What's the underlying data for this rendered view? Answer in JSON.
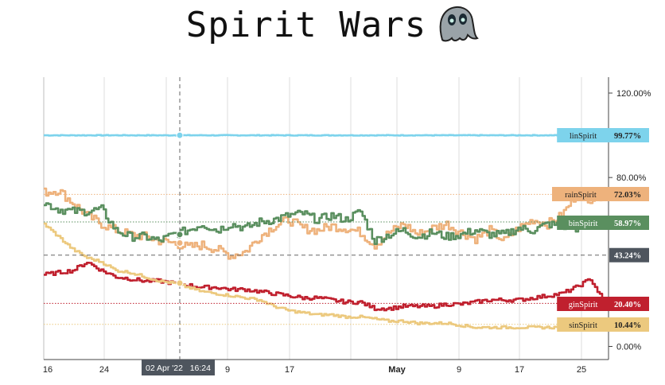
{
  "page": {
    "title": "Spirit Wars",
    "title_icon": "ghost-icon"
  },
  "chart_data": {
    "type": "line",
    "title": "Spirit Wars",
    "y_unit": "%",
    "ylim": [
      -4,
      125
    ],
    "x_ticks": [
      "16",
      "24",
      "9",
      "17",
      "May",
      "9",
      "17",
      "25"
    ],
    "y_ticks": [
      "0.00%",
      "80.00%",
      "120.00%"
    ],
    "grid": true,
    "crosshair": {
      "label": "02 Apr '22   16:24",
      "value_label": "43.24%",
      "value": 43.24
    },
    "series": [
      {
        "name": "linSpirit",
        "color": "#7dd3ec",
        "last_label": "99.77%",
        "values": [
          100,
          100,
          100,
          100,
          100,
          100,
          100,
          100,
          100,
          100,
          100,
          100,
          100,
          100,
          100,
          100,
          100,
          100,
          100,
          100,
          100,
          100,
          100,
          100,
          100,
          100,
          100,
          100,
          100,
          100,
          100,
          100,
          100,
          100,
          100,
          100,
          100,
          100,
          100,
          99.77
        ]
      },
      {
        "name": "rainSpirit",
        "color": "#eeb27c",
        "last_label": "72.03%",
        "values": [
          73,
          74,
          68,
          62,
          58,
          55,
          53,
          52,
          50,
          49,
          47,
          48,
          46,
          43,
          45,
          52,
          57,
          60,
          56,
          55,
          57,
          56,
          54,
          48,
          54,
          58,
          53,
          56,
          58,
          54,
          51,
          55,
          50,
          56,
          60,
          58,
          62,
          72,
          70,
          72
        ]
      },
      {
        "name": "binSpirit",
        "color": "#5a8f5f",
        "last_label": "58.97%",
        "values": [
          68,
          65,
          64,
          64,
          65,
          55,
          52,
          52,
          50,
          53,
          55,
          58,
          55,
          58,
          56,
          59,
          60,
          62,
          63,
          60,
          62,
          60,
          64,
          50,
          53,
          55,
          52,
          54,
          52,
          53,
          55,
          53,
          53,
          56,
          55,
          58,
          57,
          56,
          60,
          58.97
        ]
      },
      {
        "name": "ginSpirit",
        "color": "#c0202e",
        "last_label": "20.40%",
        "values": [
          34,
          35,
          36,
          40,
          36,
          33,
          32,
          31,
          31,
          30,
          29,
          28,
          28,
          27,
          27,
          26,
          25,
          24,
          23,
          23,
          22,
          21,
          21,
          18,
          18,
          19,
          19,
          19,
          20,
          20,
          21,
          22,
          22,
          22,
          23,
          24,
          25,
          28,
          32,
          20.4
        ]
      },
      {
        "name": "sinSpirit",
        "color": "#ecc97e",
        "last_label": "10.44%",
        "values": [
          58,
          52,
          46,
          42,
          40,
          36,
          35,
          33,
          31,
          30,
          28,
          26,
          25,
          24,
          23,
          22,
          19,
          17,
          16,
          15,
          15,
          14,
          14,
          13,
          12,
          12,
          11,
          11,
          11,
          10,
          9,
          9,
          9,
          9,
          9,
          9,
          9,
          8,
          9,
          10.44
        ]
      }
    ],
    "legend_placement": "right-axis end tags"
  }
}
